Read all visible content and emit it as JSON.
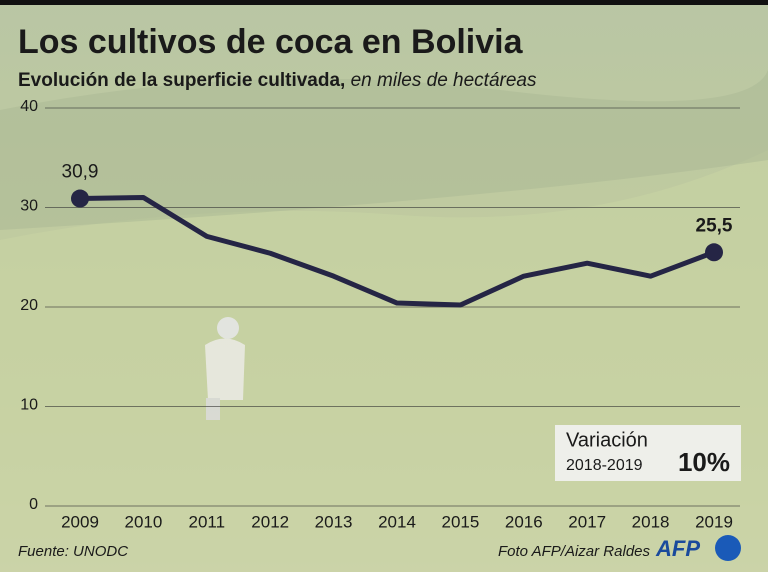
{
  "chart_data": {
    "type": "line",
    "title": "Los cultivos de coca en Bolivia",
    "subtitle": "Evolución de la superficie cultivada,",
    "subtitle_italic": "en miles de hectáreas",
    "categories": [
      "2009",
      "2010",
      "2011",
      "2012",
      "2013",
      "2014",
      "2015",
      "2016",
      "2017",
      "2018",
      "2019"
    ],
    "series": [
      {
        "name": "Superficie cultivada",
        "color": "#252545",
        "values": [
          30.9,
          31.0,
          27.1,
          25.4,
          23.1,
          20.4,
          20.2,
          23.1,
          24.4,
          23.1,
          25.5
        ],
        "value_labels": [
          "30,9",
          null,
          null,
          null,
          null,
          null,
          null,
          null,
          null,
          null,
          "25,5"
        ]
      }
    ],
    "ylim": [
      0,
      40
    ],
    "yticks": [
      0,
      10,
      20,
      30,
      40
    ],
    "grid": true,
    "annotation": {
      "title": "Variación",
      "period": "2018-2019",
      "value": "10%"
    },
    "source": "Fuente: UNODC",
    "credit": "Foto AFP/Aizar Raldes",
    "logo": "AFP"
  }
}
